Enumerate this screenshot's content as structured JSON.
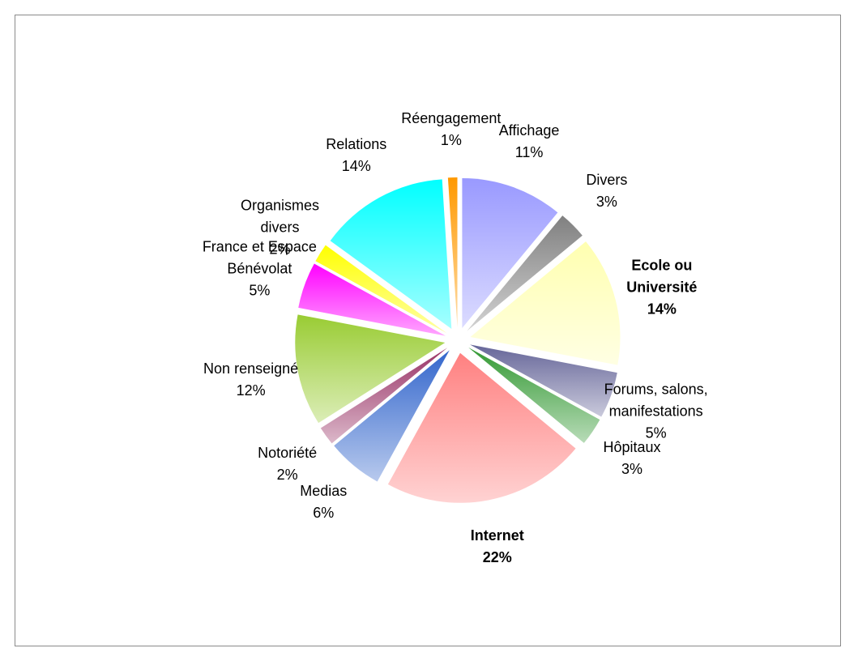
{
  "chart_data": {
    "type": "pie",
    "categories": [
      "Affichage",
      "Divers",
      "Ecole ou Université",
      "Forums, salons, manifestations",
      "Hôpitaux",
      "Internet",
      "Medias",
      "Notoriété",
      "Non renseigné",
      "France et Espace Bénévolat",
      "Organismes divers",
      "Relations",
      "Réengagement"
    ],
    "values": [
      11,
      3,
      14,
      5,
      3,
      22,
      6,
      2,
      12,
      5,
      2,
      14,
      1
    ],
    "value_labels": [
      "11%",
      "3%",
      "14%",
      "5%",
      "3%",
      "22%",
      "6%",
      "2%",
      "12%",
      "5%",
      "2%",
      "14%",
      "1%"
    ],
    "colors": [
      "#9999ff",
      "#808080",
      "#ffffb0",
      "#666699",
      "#339933",
      "#ff8080",
      "#3366cc",
      "#993366",
      "#99cc33",
      "#ff00ff",
      "#ffff00",
      "#00ffff",
      "#ff9900"
    ],
    "bold_indices": [
      2,
      5
    ]
  }
}
